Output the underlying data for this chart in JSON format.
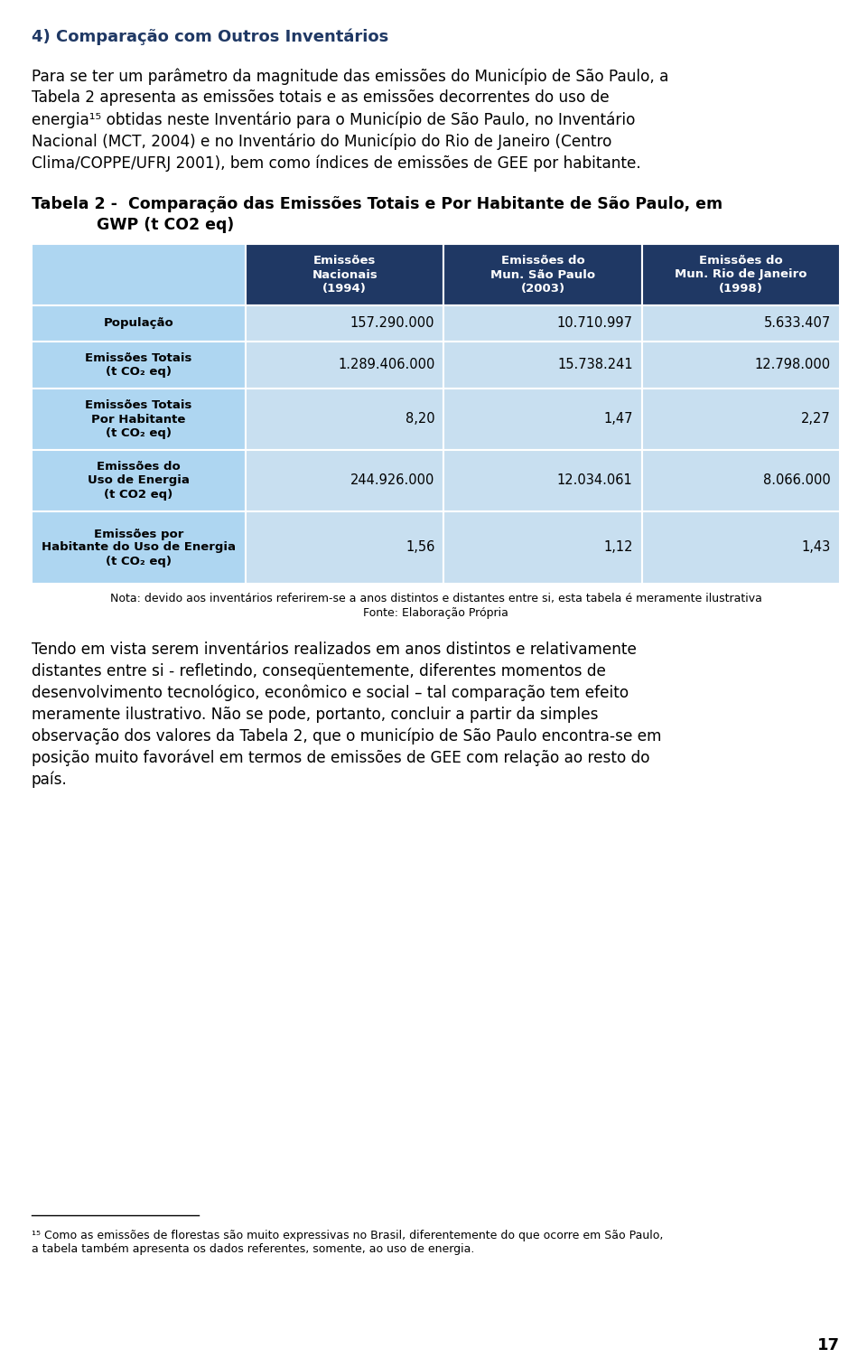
{
  "title_section": "4) Comparação com Outros Inventários",
  "title_color": "#1F3864",
  "col_headers": [
    [
      "Emissões\nNacionais\n(1994)"
    ],
    [
      "Emissões do\nMun. São Paulo\n(2003)"
    ],
    [
      "Emissões do\nMun. Rio de Janeiro\n(1998)"
    ]
  ],
  "row_labels": [
    "População",
    "Emissões Totais\n(t CO₂ eq)",
    "Emissões Totais\nPor Habitante\n(t CO₂ eq)",
    "Emissões do\nUso de Energia\n(t CO2 eq)",
    "Emissões por\nHabitante do Uso de Energia\n(t CO₂ eq)"
  ],
  "data_values": [
    [
      "157.290.000",
      "10.710.997",
      "5.633.407"
    ],
    [
      "1.289.406.000",
      "15.738.241",
      "12.798.000"
    ],
    [
      "8,20",
      "1,47",
      "2,27"
    ],
    [
      "244.926.000",
      "12.034.061",
      "8.066.000"
    ],
    [
      "1,56",
      "1,12",
      "1,43"
    ]
  ],
  "header_bg": "#1F3864",
  "header_fg": "#FFFFFF",
  "row_label_bg": "#AED6F1",
  "data_bg_light": "#C8DFF0",
  "border_color": "#FFFFFF",
  "nota_line1": "Nota: devido aos inventários referirem-se a anos distintos e distantes entre si, esta tabela é meramente ilustrativa",
  "nota_line2": "Fonte: Elaboração Própria",
  "page_number": "17",
  "bg_color": "#FFFFFF",
  "text_color": "#000000",
  "dark_blue": "#1F3864"
}
